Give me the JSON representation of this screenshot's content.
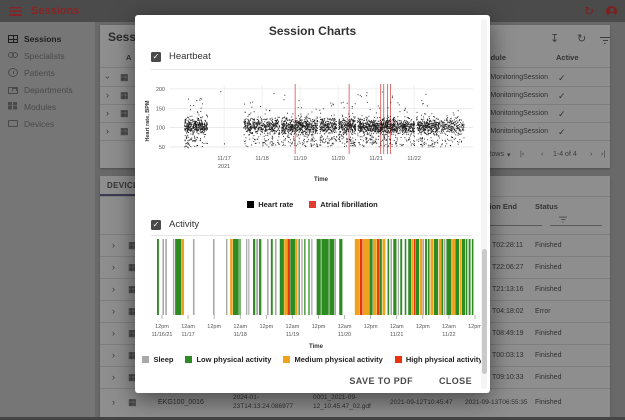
{
  "topbar": {
    "title": "Sessions"
  },
  "sidebar": {
    "items": [
      {
        "label": "Sessions",
        "icon": "sessions-icon",
        "active": true
      },
      {
        "label": "Specialists",
        "icon": "specialists-icon",
        "active": false
      },
      {
        "label": "Patients",
        "icon": "patients-icon",
        "active": false
      },
      {
        "label": "Departments",
        "icon": "departments-icon",
        "active": false
      },
      {
        "label": "Modules",
        "icon": "modules-icon",
        "active": false
      },
      {
        "label": "Devices",
        "icon": "devices-icon",
        "active": false
      }
    ]
  },
  "sessions_card": {
    "title": "Sessions",
    "columns": {
      "first": "A",
      "module": "Module",
      "active": "Active"
    },
    "rows": [
      {
        "module": "MonitoringSession",
        "active": "✓"
      },
      {
        "module": "MonitoringSession",
        "active": "✓"
      },
      {
        "module": "MonitoringSession",
        "active": "✓"
      },
      {
        "module": "MonitoringSession",
        "active": "✓"
      }
    ],
    "pagination": {
      "rows_label": "Rows",
      "range_label": "1-4 of 4",
      "first": "|‹",
      "prev": "‹",
      "next": "›",
      "last": "›|"
    }
  },
  "device_card": {
    "tab_label": "DEVICE M",
    "columns": {
      "session_end": "Session End",
      "status": "Status"
    },
    "rows": [
      {
        "end": "T02:28:11",
        "status": "Finished"
      },
      {
        "end": "T22:06:27",
        "status": "Finished"
      },
      {
        "end": "T21:13:16",
        "status": "Finished"
      },
      {
        "end": "T04:18:02",
        "status": "Error"
      },
      {
        "end": "T08:49:19",
        "status": "Finished"
      },
      {
        "end": "T00:03:13",
        "status": "Finished"
      },
      {
        "end": "T09:10:33",
        "status": "Finished"
      }
    ],
    "last_row": {
      "name": "EKG100_0016",
      "created_line1": "2024-01-",
      "created_line2": "23T14:13:24.086977",
      "file_line1": "0001_2021-09-",
      "file_line2": "12_10.45.47_02.gdf",
      "start": "2021-09-12T10:45:47",
      "end": "2021-09-13T06:55:35",
      "status": "Finished"
    }
  },
  "modal": {
    "title": "Session Charts",
    "heartbeat_label": "Heartbeat",
    "heartbeat_checked": true,
    "activity_label": "Activity",
    "activity_checked": true,
    "save_pdf_label": "SAVE TO PDF",
    "close_label": "CLOSE"
  },
  "chart_data": [
    {
      "type": "scatter",
      "title": "Heartbeat",
      "xlabel": "Time",
      "ylabel": "Heart rate, BPM",
      "ylim": [
        40,
        210
      ],
      "yticks": [
        50,
        100,
        150,
        200
      ],
      "x_domain_days": [
        15.55,
        23.55
      ],
      "xticks": [
        {
          "day": 17,
          "label": "11/17",
          "sub": "2021"
        },
        {
          "day": 18,
          "label": "11/18",
          "sub": ""
        },
        {
          "day": 19,
          "label": "11/19",
          "sub": ""
        },
        {
          "day": 20,
          "label": "11/20",
          "sub": ""
        },
        {
          "day": 21,
          "label": "11/21",
          "sub": ""
        },
        {
          "day": 22,
          "label": "11/22",
          "sub": ""
        }
      ],
      "legend": [
        {
          "label": "Heart rate",
          "color": "#000000"
        },
        {
          "label": "Atrial fibrillation",
          "color": "#e23a2e"
        }
      ],
      "point_color": "#000000",
      "af_color": "#e06060",
      "hr_mean": 103,
      "hr_sd": 21,
      "clusters": [
        [
          15.95,
          16.55,
          420,
          45,
          185
        ],
        [
          17.5,
          18.05,
          260,
          55,
          170
        ],
        [
          18.05,
          18.45,
          220,
          48,
          150
        ],
        [
          18.5,
          19.0,
          320,
          45,
          185
        ],
        [
          19.0,
          19.45,
          300,
          60,
          158
        ],
        [
          19.5,
          19.95,
          280,
          55,
          165
        ],
        [
          20.0,
          20.45,
          320,
          50,
          175
        ],
        [
          20.5,
          21.0,
          340,
          55,
          185
        ],
        [
          21.0,
          21.5,
          340,
          45,
          190
        ],
        [
          21.5,
          22.0,
          300,
          55,
          165
        ],
        [
          22.05,
          22.6,
          340,
          60,
          172
        ],
        [
          22.6,
          23.3,
          260,
          50,
          150
        ]
      ],
      "singles": [
        [
          16.9,
          193
        ],
        [
          18.3,
          188
        ],
        [
          20.75,
          190
        ],
        [
          21.15,
          192
        ],
        [
          22.3,
          186
        ],
        [
          17.0,
          58
        ]
      ],
      "af_events_days": [
        18.87,
        20.29,
        21.12,
        21.2,
        21.3,
        21.38
      ]
    },
    {
      "type": "bar",
      "title": "Activity",
      "xlabel": "Time",
      "xticks": [
        {
          "label": "12pm",
          "sub": "11/16/21"
        },
        {
          "label": "12am",
          "sub": "11/17"
        },
        {
          "label": "12pm",
          "sub": ""
        },
        {
          "label": "12am",
          "sub": "11/18"
        },
        {
          "label": "12pm",
          "sub": ""
        },
        {
          "label": "12am",
          "sub": "11/19"
        },
        {
          "label": "12pm",
          "sub": ""
        },
        {
          "label": "12am",
          "sub": "11/20"
        },
        {
          "label": "12pm",
          "sub": ""
        },
        {
          "label": "12am",
          "sub": "11/21"
        },
        {
          "label": "12pm",
          "sub": ""
        },
        {
          "label": "12am",
          "sub": "11/22"
        },
        {
          "label": "12pm",
          "sub": ""
        }
      ],
      "categories": {
        "s": {
          "label": "Sleep",
          "color": "#a8a8a8"
        },
        "l": {
          "label": "Low physical activity",
          "color": "#2e8b22"
        },
        "m": {
          "label": "Medium physical activity",
          "color": "#efa21b"
        },
        "h": {
          "label": "High physical activity",
          "color": "#e8330f"
        }
      },
      "legend_order": [
        "s",
        "l",
        "m",
        "h"
      ],
      "stripes": [
        [
          0.0,
          0.6,
          "l"
        ],
        [
          1.7,
          0.5,
          "s"
        ],
        [
          2.6,
          0.5,
          "s"
        ],
        [
          5.0,
          0.45,
          "s"
        ],
        [
          5.7,
          1.9,
          "l"
        ],
        [
          7.7,
          0.8,
          "m"
        ],
        [
          11.3,
          0.5,
          "s"
        ],
        [
          17.6,
          0.5,
          "s"
        ],
        [
          21.7,
          0.45,
          "s"
        ],
        [
          23.0,
          0.8,
          "m"
        ],
        [
          23.9,
          1.8,
          "l"
        ],
        [
          25.9,
          0.4,
          "l"
        ],
        [
          28.0,
          0.4,
          "s"
        ],
        [
          28.7,
          0.35,
          "s"
        ],
        [
          30.2,
          0.7,
          "l"
        ],
        [
          31.2,
          0.6,
          "s"
        ],
        [
          32.1,
          0.7,
          "l"
        ],
        [
          34.6,
          0.5,
          "s"
        ],
        [
          35.8,
          0.6,
          "l"
        ],
        [
          37.1,
          0.5,
          "s"
        ],
        [
          38.6,
          1.3,
          "l"
        ],
        [
          40.0,
          0.9,
          "m"
        ],
        [
          41.0,
          0.8,
          "h"
        ],
        [
          41.9,
          1.6,
          "l"
        ],
        [
          43.6,
          0.6,
          "m"
        ],
        [
          44.5,
          0.4,
          "l"
        ],
        [
          45.4,
          0.4,
          "s"
        ],
        [
          46.3,
          0.4,
          "l"
        ],
        [
          47.6,
          0.4,
          "l"
        ],
        [
          48.5,
          0.4,
          "s"
        ],
        [
          50.2,
          1.3,
          "l"
        ],
        [
          51.7,
          2.3,
          "l"
        ],
        [
          54.2,
          1.5,
          "l"
        ],
        [
          55.8,
          0.5,
          "s"
        ],
        [
          57.3,
          1.0,
          "l"
        ],
        [
          62.2,
          1.5,
          "m"
        ],
        [
          63.8,
          0.8,
          "h"
        ],
        [
          64.7,
          2.0,
          "m"
        ],
        [
          66.8,
          1.0,
          "l"
        ],
        [
          67.9,
          1.2,
          "m"
        ],
        [
          69.2,
          0.6,
          "h"
        ],
        [
          69.9,
          0.8,
          "l"
        ],
        [
          70.9,
          0.9,
          "m"
        ],
        [
          72.5,
          0.5,
          "l"
        ],
        [
          73.4,
          0.5,
          "s"
        ],
        [
          74.3,
          1.0,
          "l"
        ],
        [
          75.7,
          0.4,
          "s"
        ],
        [
          76.5,
          0.6,
          "l"
        ],
        [
          77.9,
          0.5,
          "l"
        ],
        [
          79.0,
          0.9,
          "l"
        ],
        [
          80.0,
          0.7,
          "m"
        ],
        [
          80.8,
          0.5,
          "h"
        ],
        [
          81.4,
          1.0,
          "l"
        ],
        [
          82.6,
          0.8,
          "m"
        ],
        [
          83.5,
          0.5,
          "s"
        ],
        [
          84.3,
          0.6,
          "l"
        ],
        [
          85.2,
          0.5,
          "l"
        ],
        [
          86.0,
          0.8,
          "m"
        ],
        [
          87.0,
          1.4,
          "l"
        ],
        [
          88.6,
          0.7,
          "m"
        ],
        [
          89.4,
          0.6,
          "l"
        ],
        [
          90.2,
          0.5,
          "s"
        ],
        [
          91.0,
          1.6,
          "l"
        ],
        [
          92.8,
          0.9,
          "m"
        ],
        [
          93.8,
          1.2,
          "l"
        ],
        [
          95.2,
          0.6,
          "m"
        ],
        [
          95.9,
          1.0,
          "l"
        ],
        [
          97.1,
          0.5,
          "l"
        ],
        [
          98.0,
          0.6,
          "l"
        ],
        [
          99.0,
          0.5,
          "l"
        ]
      ]
    }
  ]
}
